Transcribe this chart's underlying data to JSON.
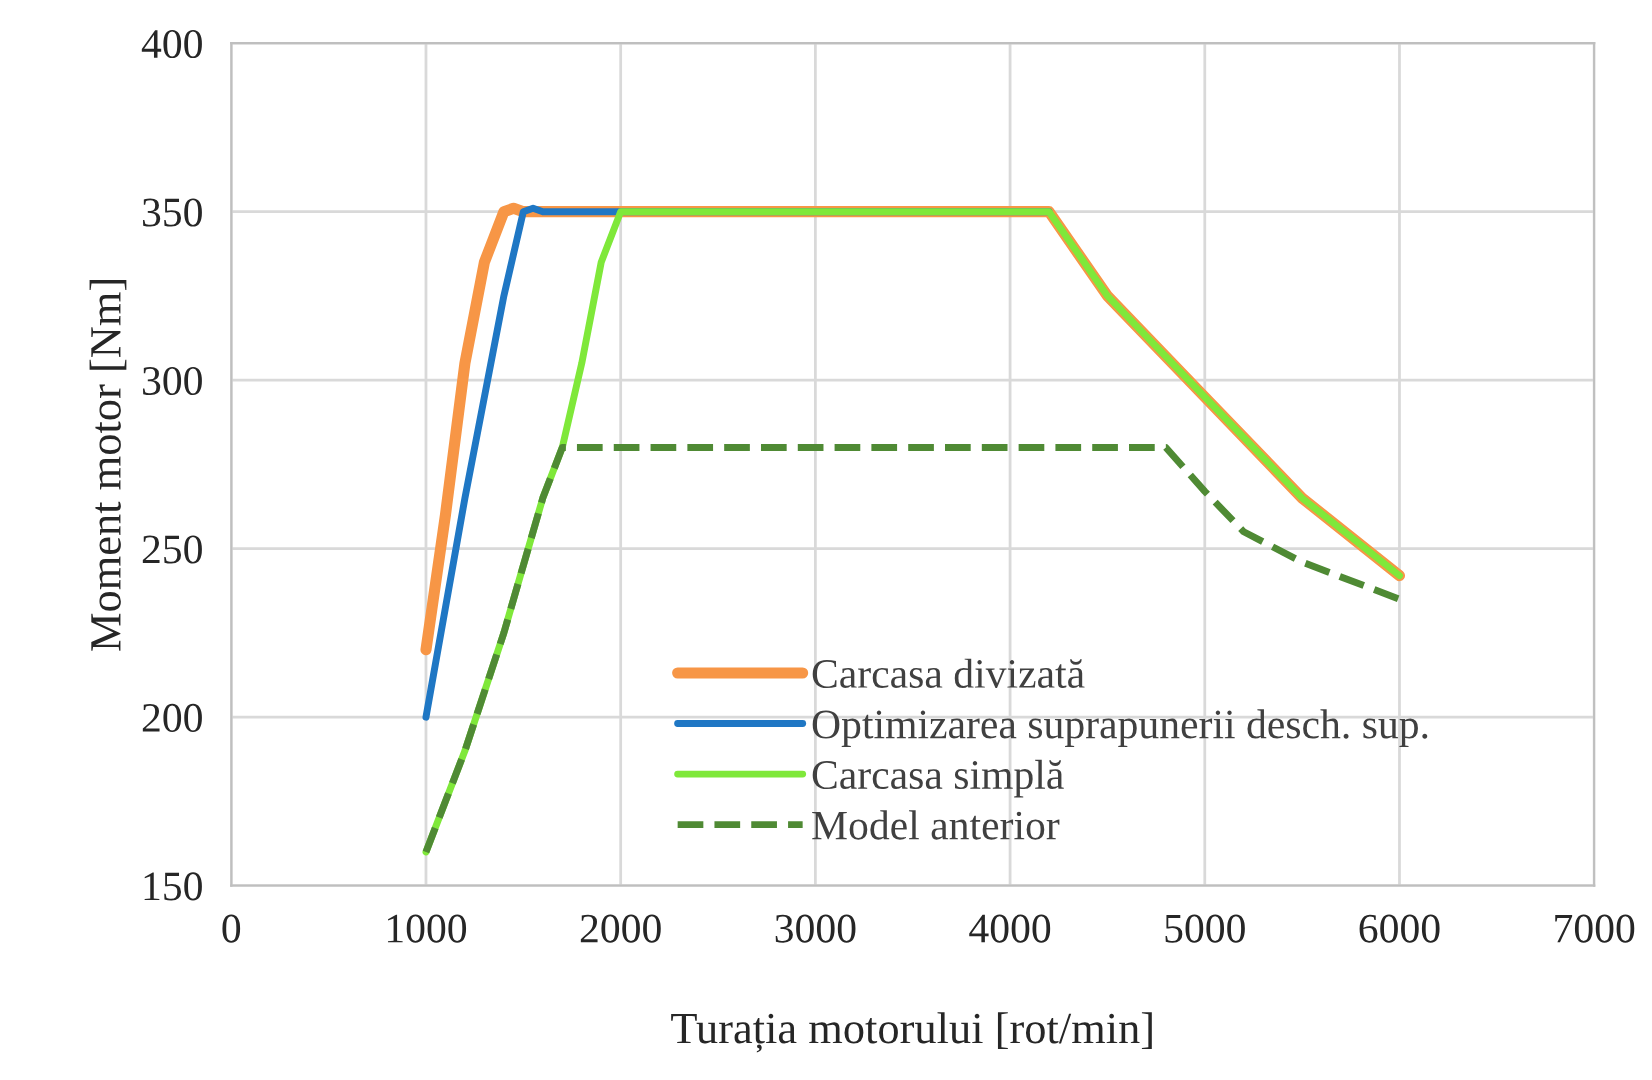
{
  "chart_data": {
    "type": "line",
    "xlabel": "Turația motorului [rot/min]",
    "ylabel": "Moment motor [Nm]",
    "xlim": [
      0,
      7000
    ],
    "xticks": [
      0,
      1000,
      2000,
      3000,
      4000,
      5000,
      6000,
      7000
    ],
    "ylim": [
      150,
      400
    ],
    "yticks": [
      150,
      200,
      250,
      300,
      350,
      400
    ],
    "grid": true,
    "legend": "bottom",
    "marker": "none",
    "series": [
      {
        "name": "Carcasa divizată",
        "color": "#f79646",
        "x": [
          1000,
          1100,
          1200,
          1300,
          1400,
          1450,
          1500,
          4200,
          4500,
          5000,
          5500,
          6000
        ],
        "values": [
          220,
          260,
          305,
          335,
          350,
          351,
          350,
          350,
          325,
          295,
          265,
          242
        ]
      },
      {
        "name": "Optimizarea suprapunerii desch. sup.",
        "color": "#1f77c4",
        "x": [
          1000,
          1200,
          1400,
          1500,
          1550,
          1600,
          4200
        ],
        "values": [
          200,
          265,
          325,
          350,
          351,
          350,
          350
        ]
      },
      {
        "name": "Carcasa simplă",
        "color": "#7fe83a",
        "x": [
          1000,
          1200,
          1400,
          1600,
          1700,
          1800,
          1900,
          2000,
          4200,
          4500,
          5000,
          5500,
          6000
        ],
        "values": [
          160,
          190,
          225,
          265,
          280,
          305,
          335,
          350,
          350,
          325,
          295,
          265,
          242
        ]
      },
      {
        "name": "Model anterior",
        "color": "#4f8a34",
        "line_style": "dashed",
        "x": [
          1000,
          1200,
          1400,
          1600,
          1700,
          1800,
          4800,
          5000,
          5200,
          5500,
          6000
        ],
        "values": [
          160,
          190,
          225,
          265,
          280,
          280,
          280,
          267,
          255,
          246,
          235
        ]
      }
    ]
  }
}
